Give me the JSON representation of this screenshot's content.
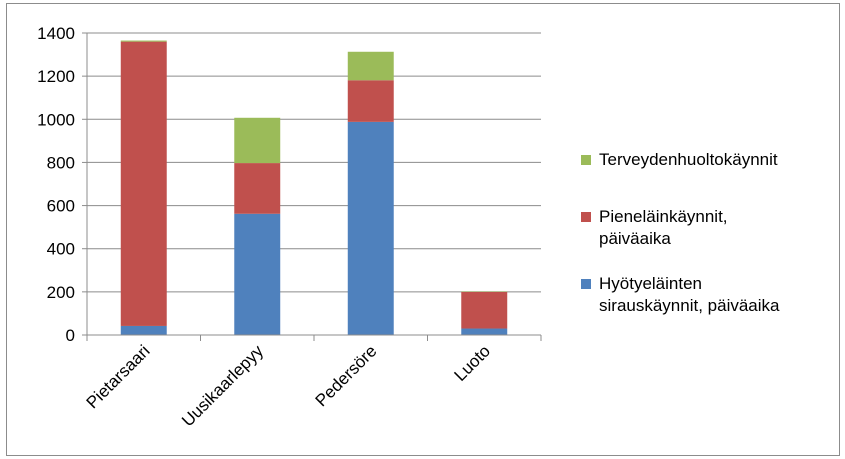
{
  "chart_data": {
    "type": "bar",
    "stacked": true,
    "categories": [
      "Pietarsaari",
      "Uusikaarlepyy",
      "Pedersöre",
      "Luoto"
    ],
    "series": [
      {
        "name": "Hyötyeläinten sirauskäynnit, päiväaika",
        "name_lines": [
          "Hyötyeläinten",
          "sirauskäynnit, päiväaika"
        ],
        "color": "#4f81bd",
        "values": [
          42,
          562,
          988,
          30
        ]
      },
      {
        "name": "Pieneläinkäynnit, päiväaika",
        "name_lines": [
          "Pieneläinkäynnit,",
          "päiväaika"
        ],
        "color": "#c0504d",
        "values": [
          1318,
          235,
          193,
          170
        ]
      },
      {
        "name": "Terveydenhuoltokäynnit",
        "name_lines": [
          "Terveydenhuoltokäynnit"
        ],
        "color": "#9bbb59",
        "values": [
          5,
          210,
          132,
          2
        ]
      }
    ],
    "y_ticks": [
      "0",
      "200",
      "400",
      "600",
      "800",
      "1000",
      "1200",
      "1400"
    ],
    "ylim": [
      0,
      1400
    ],
    "grid": true,
    "legend": "right",
    "title": "",
    "xlabel": "",
    "ylabel": ""
  }
}
